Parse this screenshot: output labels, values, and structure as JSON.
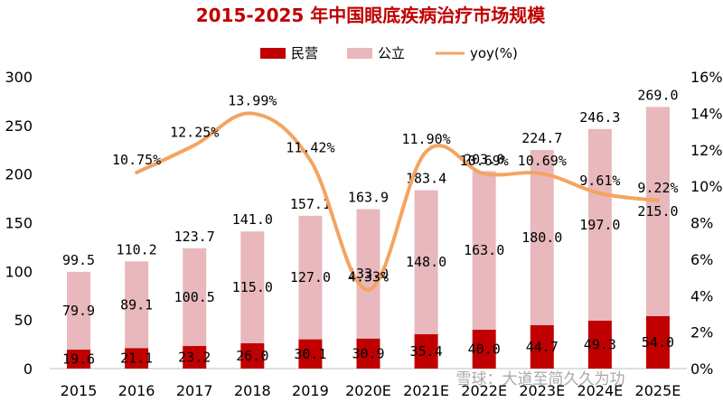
{
  "chart_data": {
    "type": "bar",
    "title": "2015-2025 年中国眼底疾病治疗市场规模",
    "categories": [
      "2015",
      "2016",
      "2017",
      "2018",
      "2019",
      "2020E",
      "2021E",
      "2022E",
      "2023E",
      "2024E",
      "2025E"
    ],
    "series": [
      {
        "name": "民营",
        "kind": "stacked-bar",
        "color": "#c00000",
        "values": [
          19.6,
          21.1,
          23.2,
          26.0,
          30.1,
          30.9,
          35.4,
          40.0,
          44.7,
          49.3,
          54.0
        ],
        "labels": [
          "19.6",
          "21.1",
          "23.2",
          "26.0",
          "30.1",
          "30.9",
          "35.4",
          "40.0",
          "44.7",
          "49.3",
          "54.0"
        ]
      },
      {
        "name": "公立",
        "kind": "stacked-bar",
        "color": "#e8b8bc",
        "values": [
          79.9,
          89.1,
          100.5,
          115.0,
          127.0,
          133.0,
          148.0,
          163.0,
          180.0,
          197.0,
          215.0
        ],
        "labels": [
          "79.9",
          "89.1",
          "100.5",
          "115.0",
          "127.0",
          "133.0",
          "148.0",
          "163.0",
          "180.0",
          "197.0",
          "215.0"
        ]
      },
      {
        "name": "yoy(%)",
        "kind": "line",
        "axis": "right",
        "color": "#f4a460",
        "values": [
          null,
          10.75,
          12.25,
          13.99,
          11.42,
          4.33,
          11.9,
          10.69,
          10.69,
          9.61,
          9.22
        ],
        "labels": [
          "",
          "10.75%",
          "12.25%",
          "13.99%",
          "11.42%",
          "4.33%",
          "11.90%",
          "10.69%",
          "10.69%",
          "9.61%",
          "9.22%"
        ]
      }
    ],
    "totals": [
      99.5,
      110.2,
      123.7,
      141.0,
      157.1,
      163.9,
      183.4,
      203.0,
      224.7,
      246.3,
      269.0
    ],
    "total_labels": [
      "99.5",
      "110.2",
      "123.7",
      "141.0",
      "157.1",
      "163.9",
      "183.4",
      "203.0",
      "224.7",
      "246.3",
      "269.0"
    ],
    "y_left": {
      "min": 0,
      "max": 300,
      "ticks": [
        "0",
        "50",
        "100",
        "150",
        "200",
        "250",
        "300"
      ]
    },
    "y_right": {
      "min": 0,
      "max": 16,
      "ticks": [
        "0%",
        "2%",
        "4%",
        "6%",
        "8%",
        "10%",
        "12%",
        "14%",
        "16%"
      ]
    },
    "legend_position": "top",
    "grid": false
  },
  "watermark": "雪球：大道至简久久为功"
}
